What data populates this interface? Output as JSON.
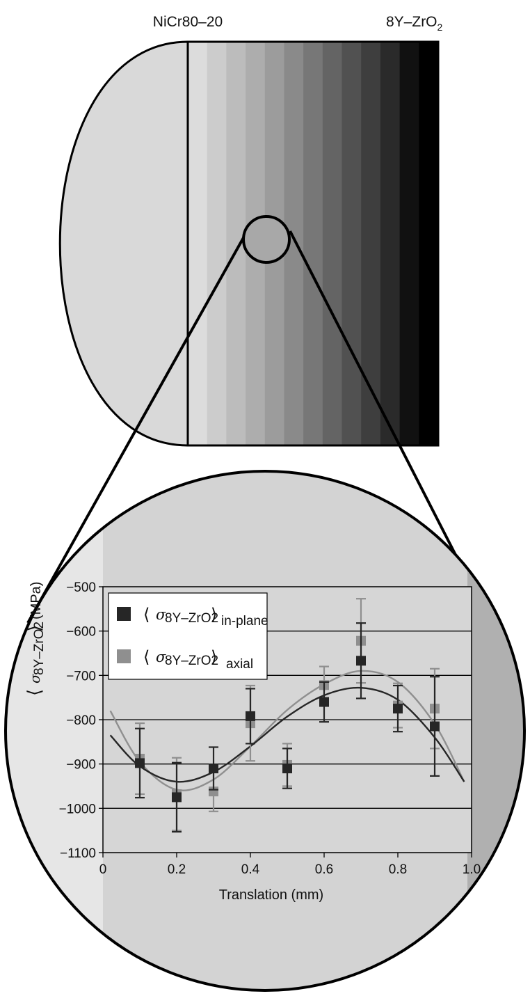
{
  "top_labels": {
    "left": "NiCr80–20",
    "right_main": "8Y–ZrO",
    "right_sub": "2"
  },
  "colors": {
    "bands": [
      "#dcdcdc",
      "#cccccc",
      "#bcbcbc",
      "#adadad",
      "#9c9c9c",
      "#8a8a8a",
      "#777777",
      "#646464",
      "#515151",
      "#3e3e3e",
      "#2a2a2a",
      "#111111",
      "#000000"
    ],
    "in_plane": "#262626",
    "axial": "#8f8f8f",
    "plot_bg": "#d6d6d6",
    "circle_bg": "#d3d3d3"
  },
  "chart_data": {
    "type": "scatter",
    "xlabel": "Translation (mm)",
    "ylabel_main": "σ",
    "ylabel_sub": "8Y–ZrO2",
    "ylabel_unit": "(MPa)",
    "xlim": [
      0,
      1.0
    ],
    "ylim": [
      -1100,
      -500
    ],
    "x_ticks": [
      "0",
      "0.2",
      "0.4",
      "0.6",
      "0.8",
      "1.0"
    ],
    "y_ticks": [
      "−500",
      "−600",
      "−700",
      "−800",
      "−900",
      "−1000",
      "−1100"
    ],
    "grid": "horizontal",
    "legend_placement": "top-left",
    "series": [
      {
        "key": "in_plane",
        "legend_symbol": "σ",
        "legend_sub": "8Y–ZrO2",
        "legend_suffix": "in-plane",
        "x": [
          0.1,
          0.2,
          0.3,
          0.4,
          0.5,
          0.6,
          0.7,
          0.8,
          0.9
        ],
        "y": [
          -898,
          -975,
          -910,
          -792,
          -910,
          -760,
          -667,
          -775,
          -815
        ],
        "err": [
          78,
          78,
          48,
          62,
          45,
          45,
          85,
          52,
          112
        ],
        "fit_x": [
          0.02,
          0.1,
          0.2,
          0.3,
          0.4,
          0.5,
          0.6,
          0.7,
          0.8,
          0.9,
          0.98
        ],
        "fit_y": [
          -835,
          -905,
          -940,
          -918,
          -860,
          -793,
          -745,
          -728,
          -755,
          -840,
          -940
        ]
      },
      {
        "key": "axial",
        "legend_symbol": "σ",
        "legend_sub": "8Y–ZrO2",
        "legend_suffix": "axial",
        "x": [
          0.1,
          0.2,
          0.3,
          0.4,
          0.5,
          0.6,
          0.7,
          0.8,
          0.9
        ],
        "y": [
          -888,
          -968,
          -962,
          -808,
          -902,
          -722,
          -622,
          -768,
          -775
        ],
        "err": [
          80,
          82,
          45,
          85,
          48,
          42,
          95,
          50,
          90
        ],
        "fit_x": [
          0.02,
          0.1,
          0.2,
          0.3,
          0.4,
          0.5,
          0.6,
          0.7,
          0.8,
          0.9,
          0.98
        ],
        "fit_y": [
          -780,
          -895,
          -958,
          -935,
          -860,
          -778,
          -720,
          -690,
          -715,
          -810,
          -940
        ]
      }
    ]
  }
}
